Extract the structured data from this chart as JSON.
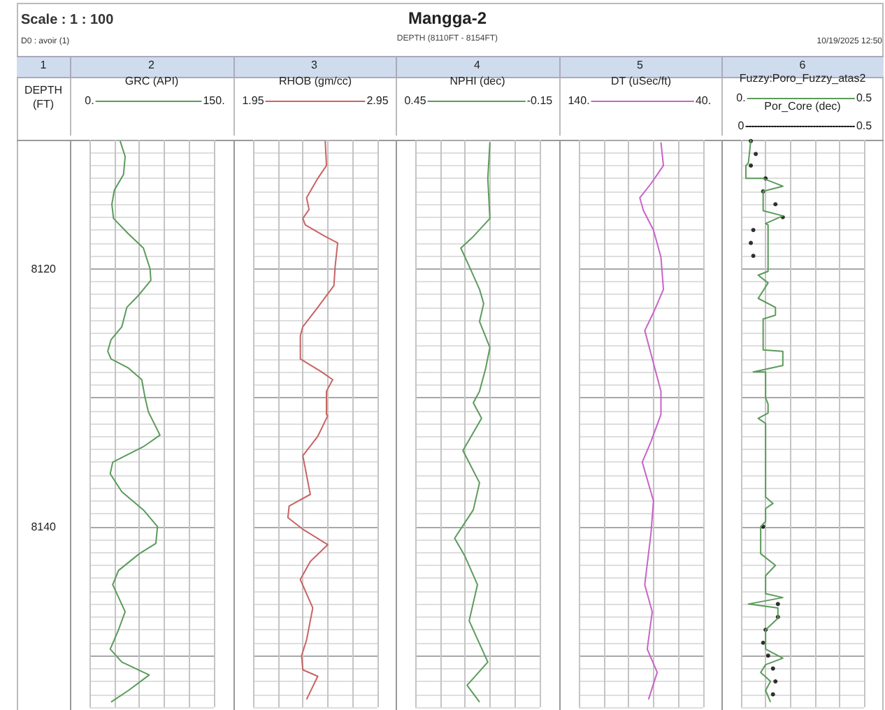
{
  "chart_data": [
    {
      "type": "line",
      "ylabel": "DEPTH (FT)",
      "xlabel": "GRC (API)",
      "grid": true,
      "annotations": [
        "Scale : 1 : 100",
        "D0 : avoir (1)",
        "1",
        "2"
      ],
      "xlim": [
        0,
        150
      ],
      "xticks": [
        {
          "value": 0,
          "label": "0."
        },
        {
          "value": 30,
          "label": null
        },
        {
          "value": 60,
          "label": null
        },
        {
          "value": 90,
          "label": null
        },
        {
          "value": 120,
          "label": null
        },
        {
          "value": 150,
          "label": "150."
        }
      ],
      "ylim": [
        8154,
        8110
      ],
      "yticks": [
        {
          "value": 8110,
          "label": null
        },
        {
          "value": 8111,
          "label": null
        },
        {
          "value": 8112,
          "label": null
        },
        {
          "value": 8113,
          "label": null
        },
        {
          "value": 8114,
          "label": null
        },
        {
          "value": 8115,
          "label": null
        },
        {
          "value": 8116,
          "label": null
        },
        {
          "value": 8117,
          "label": null
        },
        {
          "value": 8118,
          "label": null
        },
        {
          "value": 8119,
          "label": null
        },
        {
          "value": 8120,
          "label": "8120"
        },
        {
          "value": 8121,
          "label": null
        },
        {
          "value": 8122,
          "label": null
        },
        {
          "value": 8123,
          "label": null
        },
        {
          "value": 8124,
          "label": null
        },
        {
          "value": 8125,
          "label": null
        },
        {
          "value": 8126,
          "label": null
        },
        {
          "value": 8127,
          "label": null
        },
        {
          "value": 8128,
          "label": null
        },
        {
          "value": 8129,
          "label": null
        },
        {
          "value": 8130,
          "label": null
        },
        {
          "value": 8131,
          "label": null
        },
        {
          "value": 8132,
          "label": null
        },
        {
          "value": 8133,
          "label": null
        },
        {
          "value": 8134,
          "label": null
        },
        {
          "value": 8135,
          "label": null
        },
        {
          "value": 8136,
          "label": null
        },
        {
          "value": 8137,
          "label": null
        },
        {
          "value": 8138,
          "label": null
        },
        {
          "value": 8139,
          "label": null
        },
        {
          "value": 8140,
          "label": "8140"
        },
        {
          "value": 8141,
          "label": null
        },
        {
          "value": 8142,
          "label": null
        },
        {
          "value": 8143,
          "label": null
        },
        {
          "value": 8144,
          "label": null
        },
        {
          "value": 8145,
          "label": null
        },
        {
          "value": 8146,
          "label": null
        },
        {
          "value": 8147,
          "label": null
        },
        {
          "value": 8148,
          "label": null
        },
        {
          "value": 8149,
          "label": null
        },
        {
          "value": 8150,
          "label": null
        },
        {
          "value": 8151,
          "label": null
        },
        {
          "value": 8152,
          "label": null
        },
        {
          "value": 8153,
          "label": null
        },
        {
          "value": 8154,
          "label": null
        }
      ],
      "series": [
        {
          "color": "#5b9b5b",
          "x": [
            37,
            43,
            41,
            30,
            27,
            29,
            47,
            65,
            73,
            74,
            60,
            45,
            39,
            26,
            22,
            26,
            47,
            63,
            67,
            71,
            85,
            65,
            28,
            25,
            39,
            65,
            82,
            80,
            60,
            35,
            28,
            43,
            35,
            25,
            39,
            72,
            47,
            26
          ],
          "values": [
            8110.1,
            8111.3,
            8112.7,
            8113.9,
            8115.0,
            8116.1,
            8117.3,
            8118.4,
            8120.0,
            8120.9,
            8122.0,
            8123.0,
            8124.5,
            8125.5,
            8126.4,
            8127.0,
            8127.7,
            8128.6,
            8130.0,
            8131.1,
            8132.9,
            8133.8,
            8135.0,
            8135.9,
            8137.3,
            8138.7,
            8140.0,
            8141.3,
            8142.1,
            8143.4,
            8144.5,
            8146.6,
            8148.0,
            8149.5,
            8150.5,
            8151.5,
            8152.7,
            8153.6
          ]
        }
      ]
    },
    {
      "type": "line",
      "xlabel": "RHOB (gm/cc)",
      "grid": true,
      "tick_labels": "x",
      "annotations": [
        "3"
      ],
      "xlim": [
        1.95,
        2.95
      ],
      "xticks": [
        {
          "value": 1.95,
          "label": "1.95"
        },
        {
          "value": 2.15,
          "label": null
        },
        {
          "value": 2.35,
          "label": null
        },
        {
          "value": 2.55,
          "label": null
        },
        {
          "value": 2.75,
          "label": null
        },
        {
          "value": 2.95,
          "label": "2.95"
        }
      ],
      "ylim": [
        8154,
        8110
      ],
      "yticks": [
        8110,
        8111,
        8112,
        8113,
        8114,
        8115,
        8116,
        8117,
        8118,
        8119,
        8120,
        8121,
        8122,
        8123,
        8124,
        8125,
        8126,
        8127,
        8128,
        8129,
        8130,
        8131,
        8132,
        8133,
        8134,
        8135,
        8136,
        8137,
        8138,
        8139,
        8140,
        8141,
        8142,
        8143,
        8144,
        8145,
        8146,
        8147,
        8148,
        8149,
        8150,
        8151,
        8152,
        8153,
        8154
      ],
      "series": [
        {
          "color": "#c86464",
          "x": [
            2.53,
            2.54,
            2.47,
            2.38,
            2.4,
            2.35,
            2.37,
            2.53,
            2.63,
            2.61,
            2.6,
            2.47,
            2.35,
            2.33,
            2.33,
            2.5,
            2.59,
            2.54,
            2.54,
            2.55,
            2.47,
            2.35,
            2.41,
            2.24,
            2.23,
            2.35,
            2.55,
            2.41,
            2.33,
            2.43,
            2.38,
            2.34,
            2.35,
            2.47,
            2.38
          ],
          "values": [
            8110.1,
            8112.0,
            8113.0,
            8114.5,
            8115.4,
            8116.1,
            8116.6,
            8117.5,
            8118.0,
            8119.8,
            8121.3,
            8123.0,
            8124.5,
            8125.2,
            8127.0,
            8128.0,
            8128.6,
            8129.5,
            8131.3,
            8131.4,
            8133.0,
            8134.5,
            8137.5,
            8138.4,
            8139.3,
            8140.2,
            8141.4,
            8142.7,
            8144.1,
            8146.3,
            8148.8,
            8150.0,
            8151.1,
            8151.6,
            8153.4
          ]
        }
      ]
    },
    {
      "type": "line",
      "title": "Mangga-2",
      "subtitle": "DEPTH (8110FT - 8154FT)",
      "xlabel": "NPHI (dec)",
      "grid": true,
      "tick_labels": "x",
      "annotations": [
        "4"
      ],
      "xlim": [
        0.45,
        -0.15
      ],
      "xticks": [
        {
          "value": 0.45,
          "label": "0.45"
        },
        {
          "value": 0.33,
          "label": null
        },
        {
          "value": 0.21,
          "label": null
        },
        {
          "value": 0.09,
          "label": null
        },
        {
          "value": -0.03,
          "label": null
        },
        {
          "value": -0.15,
          "label": "-0.15"
        }
      ],
      "ylim": [
        8154,
        8110
      ],
      "yticks": [
        8110,
        8111,
        8112,
        8113,
        8114,
        8115,
        8116,
        8117,
        8118,
        8119,
        8120,
        8121,
        8122,
        8123,
        8124,
        8125,
        8126,
        8127,
        8128,
        8129,
        8130,
        8131,
        8132,
        8133,
        8134,
        8135,
        8136,
        8137,
        8138,
        8139,
        8140,
        8141,
        8142,
        8143,
        8144,
        8145,
        8146,
        8147,
        8148,
        8149,
        8150,
        8151,
        8152,
        8153,
        8154
      ],
      "series": [
        {
          "color": "#5b9b5b",
          "x": [
            0.09,
            0.1,
            0.09,
            0.17,
            0.23,
            0.19,
            0.14,
            0.12,
            0.14,
            0.09,
            0.11,
            0.14,
            0.17,
            0.14,
            0.13,
            0.22,
            0.14,
            0.17,
            0.26,
            0.21,
            0.15,
            0.19,
            0.1,
            0.2,
            0.14
          ],
          "values": [
            8110.2,
            8113.0,
            8116.1,
            8117.5,
            8118.4,
            8119.8,
            8121.6,
            8122.7,
            8124.1,
            8126.1,
            8127.7,
            8129.5,
            8130.4,
            8131.3,
            8131.6,
            8134.1,
            8136.6,
            8138.7,
            8140.9,
            8142.3,
            8144.5,
            8147.3,
            8150.5,
            8152.3,
            8153.6
          ]
        }
      ]
    },
    {
      "type": "line",
      "xlabel": "DT (uSec/ft)",
      "grid": true,
      "tick_labels": "x",
      "annotations": [
        "5"
      ],
      "xlim": [
        140,
        40
      ],
      "xticks": [
        {
          "value": 140,
          "label": "140."
        },
        {
          "value": 120,
          "label": null
        },
        {
          "value": 100,
          "label": null
        },
        {
          "value": 80,
          "label": null
        },
        {
          "value": 60,
          "label": null
        },
        {
          "value": 40,
          "label": "40."
        }
      ],
      "ylim": [
        8154,
        8110
      ],
      "yticks": [
        8110,
        8111,
        8112,
        8113,
        8114,
        8115,
        8116,
        8117,
        8118,
        8119,
        8120,
        8121,
        8122,
        8123,
        8124,
        8125,
        8126,
        8127,
        8128,
        8129,
        8130,
        8131,
        8132,
        8133,
        8134,
        8135,
        8136,
        8137,
        8138,
        8139,
        8140,
        8141,
        8142,
        8143,
        8144,
        8145,
        8146,
        8147,
        8148,
        8149,
        8150,
        8151,
        8152,
        8153,
        8154
      ],
      "series": [
        {
          "color": "#c864c8",
          "x": [
            74,
            72,
            82,
            91,
            88,
            80,
            74,
            72,
            80,
            87,
            82,
            74,
            74,
            82,
            89,
            80,
            82,
            87,
            81,
            85,
            77,
            84
          ],
          "values": [
            8110.2,
            8112.0,
            8113.4,
            8114.5,
            8115.5,
            8117.0,
            8119.1,
            8121.6,
            8123.4,
            8124.8,
            8126.6,
            8129.5,
            8131.3,
            8133.4,
            8135.0,
            8138.0,
            8140.5,
            8144.5,
            8146.6,
            8149.5,
            8151.3,
            8153.4
          ]
        }
      ]
    },
    {
      "type": "line",
      "xlabel": "Fuzzy:Poro_Fuzzy_atas2",
      "x2label": "Por_Core (dec)",
      "grid": true,
      "tick_labels": "x",
      "annotations": [
        "10/19/2025 12:50",
        "6"
      ],
      "xlim": [
        0,
        0.5
      ],
      "xticks": [
        {
          "value": 0,
          "label": "0."
        },
        {
          "value": 0.1,
          "label": null
        },
        {
          "value": 0.2,
          "label": null
        },
        {
          "value": 0.3,
          "label": null
        },
        {
          "value": 0.4,
          "label": null
        },
        {
          "value": 0.5,
          "label": "0.5"
        }
      ],
      "x2lim": [
        0,
        0.5
      ],
      "x2ticks": [
        0,
        0.5
      ],
      "ylim": [
        8154,
        8110
      ],
      "yticks": [
        8110,
        8111,
        8112,
        8113,
        8114,
        8115,
        8116,
        8117,
        8118,
        8119,
        8120,
        8121,
        8122,
        8123,
        8124,
        8125,
        8126,
        8127,
        8128,
        8129,
        8130,
        8131,
        8132,
        8133,
        8134,
        8135,
        8136,
        8137,
        8138,
        8139,
        8140,
        8141,
        8142,
        8143,
        8144,
        8145,
        8146,
        8147,
        8148,
        8149,
        8150,
        8151,
        8152,
        8153,
        8154
      ],
      "series": [
        {
          "color": "#5b9b5b",
          "x": [
            0.04,
            0.03,
            0.02,
            0.02,
            0.09,
            0.17,
            0.09,
            0.09,
            0.17,
            0.1,
            0.11,
            0.11,
            0.07,
            0.11,
            0.07,
            0.14,
            0.14,
            0.09,
            0.09,
            0.17,
            0.17,
            0.05,
            0.1,
            0.1,
            0.11,
            0.11,
            0.07,
            0.1,
            0.1,
            0.13,
            0.1,
            0.1,
            0.08,
            0.08,
            0.14,
            0.1,
            0.1,
            0.17,
            0.03,
            0.15,
            0.15,
            0.1,
            0.1,
            0.17,
            0.1,
            0.08,
            0.12,
            0.1,
            0.12
          ],
          "values": [
            8110.0,
            8111.8,
            8112.0,
            8113.0,
            8113.0,
            8113.6,
            8114.0,
            8115.5,
            8115.9,
            8116.5,
            8116.6,
            8120.2,
            8120.5,
            8121.1,
            8122.3,
            8123.0,
            8123.6,
            8123.9,
            8126.3,
            8126.4,
            8127.5,
            8128.0,
            8128.0,
            8130.0,
            8130.5,
            8131.2,
            8131.6,
            8132.0,
            8137.7,
            8138.2,
            8138.6,
            8139.6,
            8140.0,
            8142.1,
            8143.0,
            8143.8,
            8145.2,
            8145.5,
            8146.0,
            8146.3,
            8147.1,
            8148.0,
            8149.5,
            8150.2,
            8150.7,
            8151.3,
            8152.0,
            8152.7,
            8153.6
          ]
        },
        {
          "type": "scatter",
          "axis": "x2",
          "marker": "circle",
          "color": "#000000",
          "x": [
            0.04,
            0.06,
            0.04,
            0.1,
            0.09,
            0.14,
            0.17,
            0.05,
            0.04,
            0.05,
            0.09,
            0.15,
            0.15,
            0.1,
            0.09,
            0.11,
            0.13,
            0.14,
            0.13
          ],
          "values": [
            8110.1,
            8111.1,
            8112.0,
            8113.0,
            8114.0,
            8115.0,
            8116.0,
            8117.0,
            8118.0,
            8119.0,
            8140.0,
            8146.0,
            8147.0,
            8148.0,
            8149.0,
            8150.0,
            8151.0,
            8152.0,
            8153.0
          ]
        }
      ]
    }
  ]
}
